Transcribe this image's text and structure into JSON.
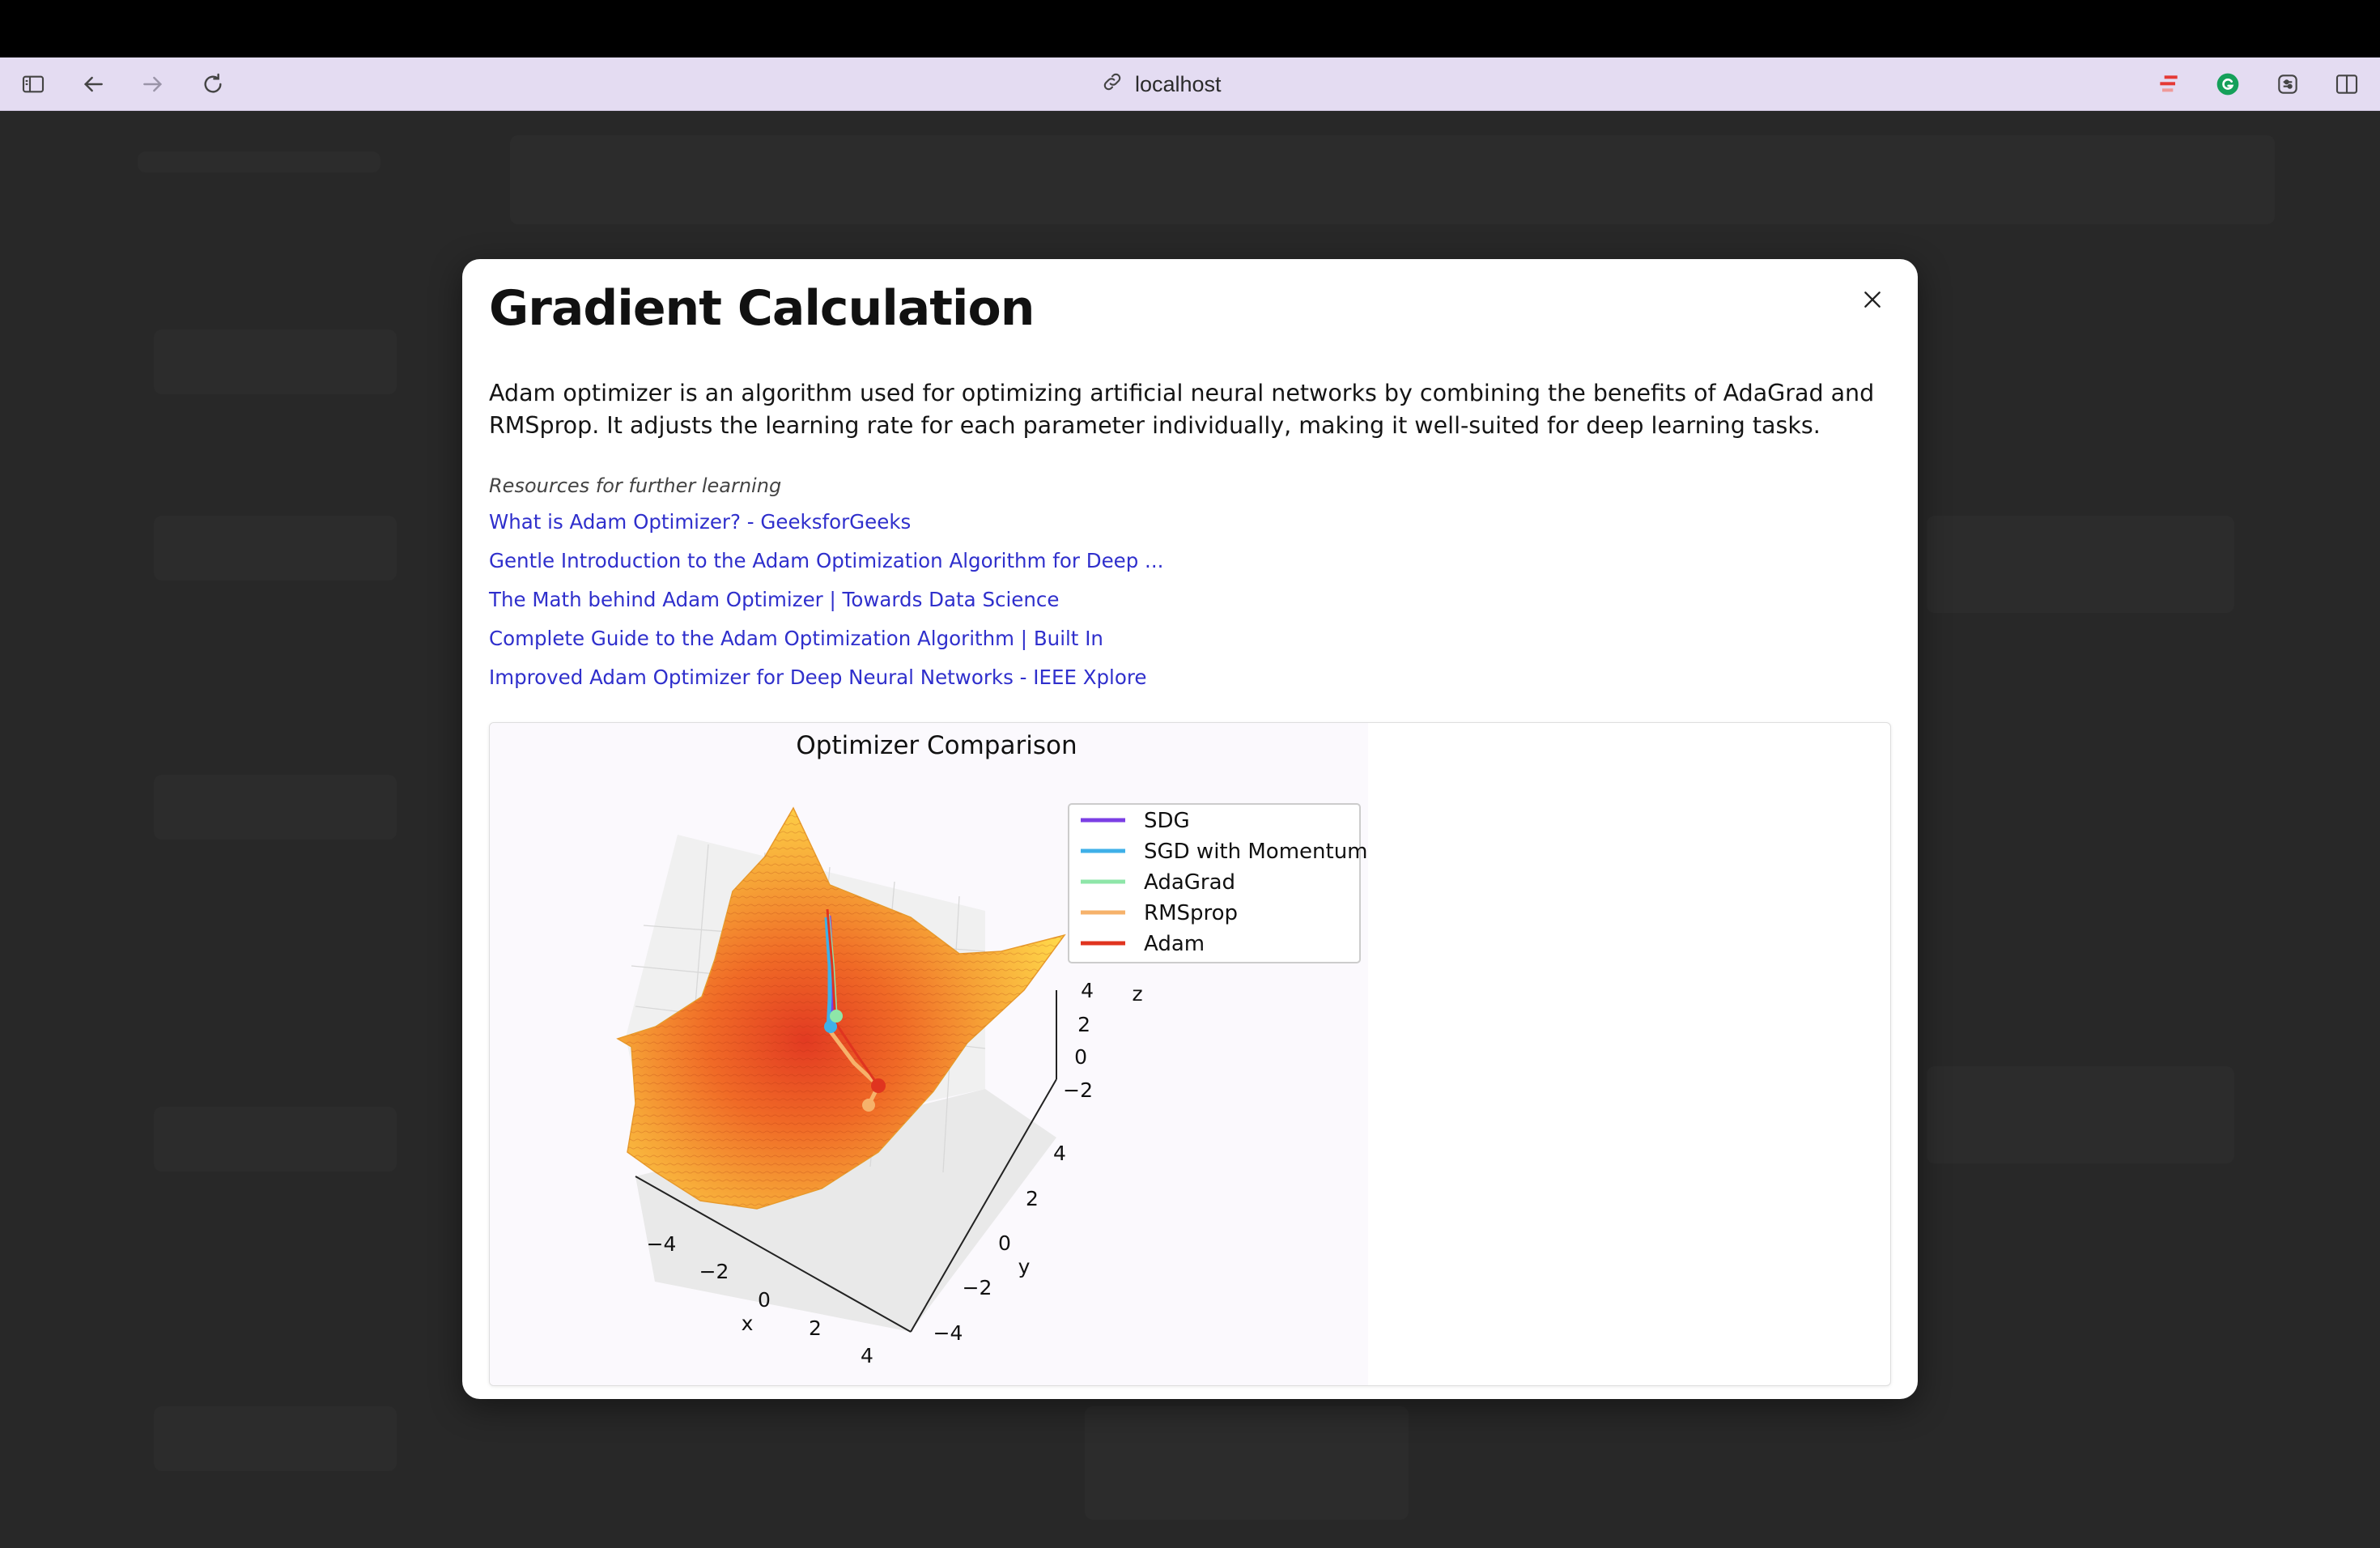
{
  "browser": {
    "address": "localhost",
    "icons": [
      "sidebar-icon",
      "back-icon",
      "forward-icon",
      "reload-icon",
      "link-icon",
      "extension-icon",
      "grammarly-icon",
      "settings-icon",
      "split-view-icon"
    ]
  },
  "modal": {
    "title": "Gradient Calculation",
    "description": "Adam optimizer is an algorithm used for optimizing artificial neural networks by combining the benefits of AdaGrad and RMSprop. It adjusts the learning rate for each parameter individually, making it well-suited for deep learning tasks.",
    "resources_heading": "Resources for further learning",
    "links": [
      "What is Adam Optimizer? - GeeksforGeeks",
      "Gentle Introduction to the Adam Optimization Algorithm for Deep ...",
      "The Math behind Adam Optimizer | Towards Data Science",
      "Complete Guide to the Adam Optimization Algorithm | Built In",
      "Improved Adam Optimizer for Deep Neural Networks - IEEE Xplore"
    ],
    "link_color": "#2f2fcc"
  },
  "chart_data": {
    "type": "surface3d",
    "title": "Optimizer Comparison",
    "xlabel": "x",
    "ylabel": "y",
    "zlabel": "z",
    "x_ticks": [
      "−4",
      "−2",
      "0",
      "2",
      "4"
    ],
    "y_ticks": [
      "−4",
      "−2",
      "0",
      "2",
      "4"
    ],
    "z_ticks": [
      "−2",
      "0",
      "2",
      "4"
    ],
    "xlim": [
      -5,
      5
    ],
    "ylim": [
      -5,
      5
    ],
    "legend_position": "upper-right",
    "colormap": "orange-yellow",
    "series": [
      {
        "name": "SDG",
        "color": "#7b3fe4"
      },
      {
        "name": "SGD with Momentum",
        "color": "#3fb0e8"
      },
      {
        "name": "AdaGrad",
        "color": "#8ee6a8"
      },
      {
        "name": "RMSprop",
        "color": "#f6b26b"
      },
      {
        "name": "Adam",
        "color": "#e0341f"
      }
    ]
  }
}
